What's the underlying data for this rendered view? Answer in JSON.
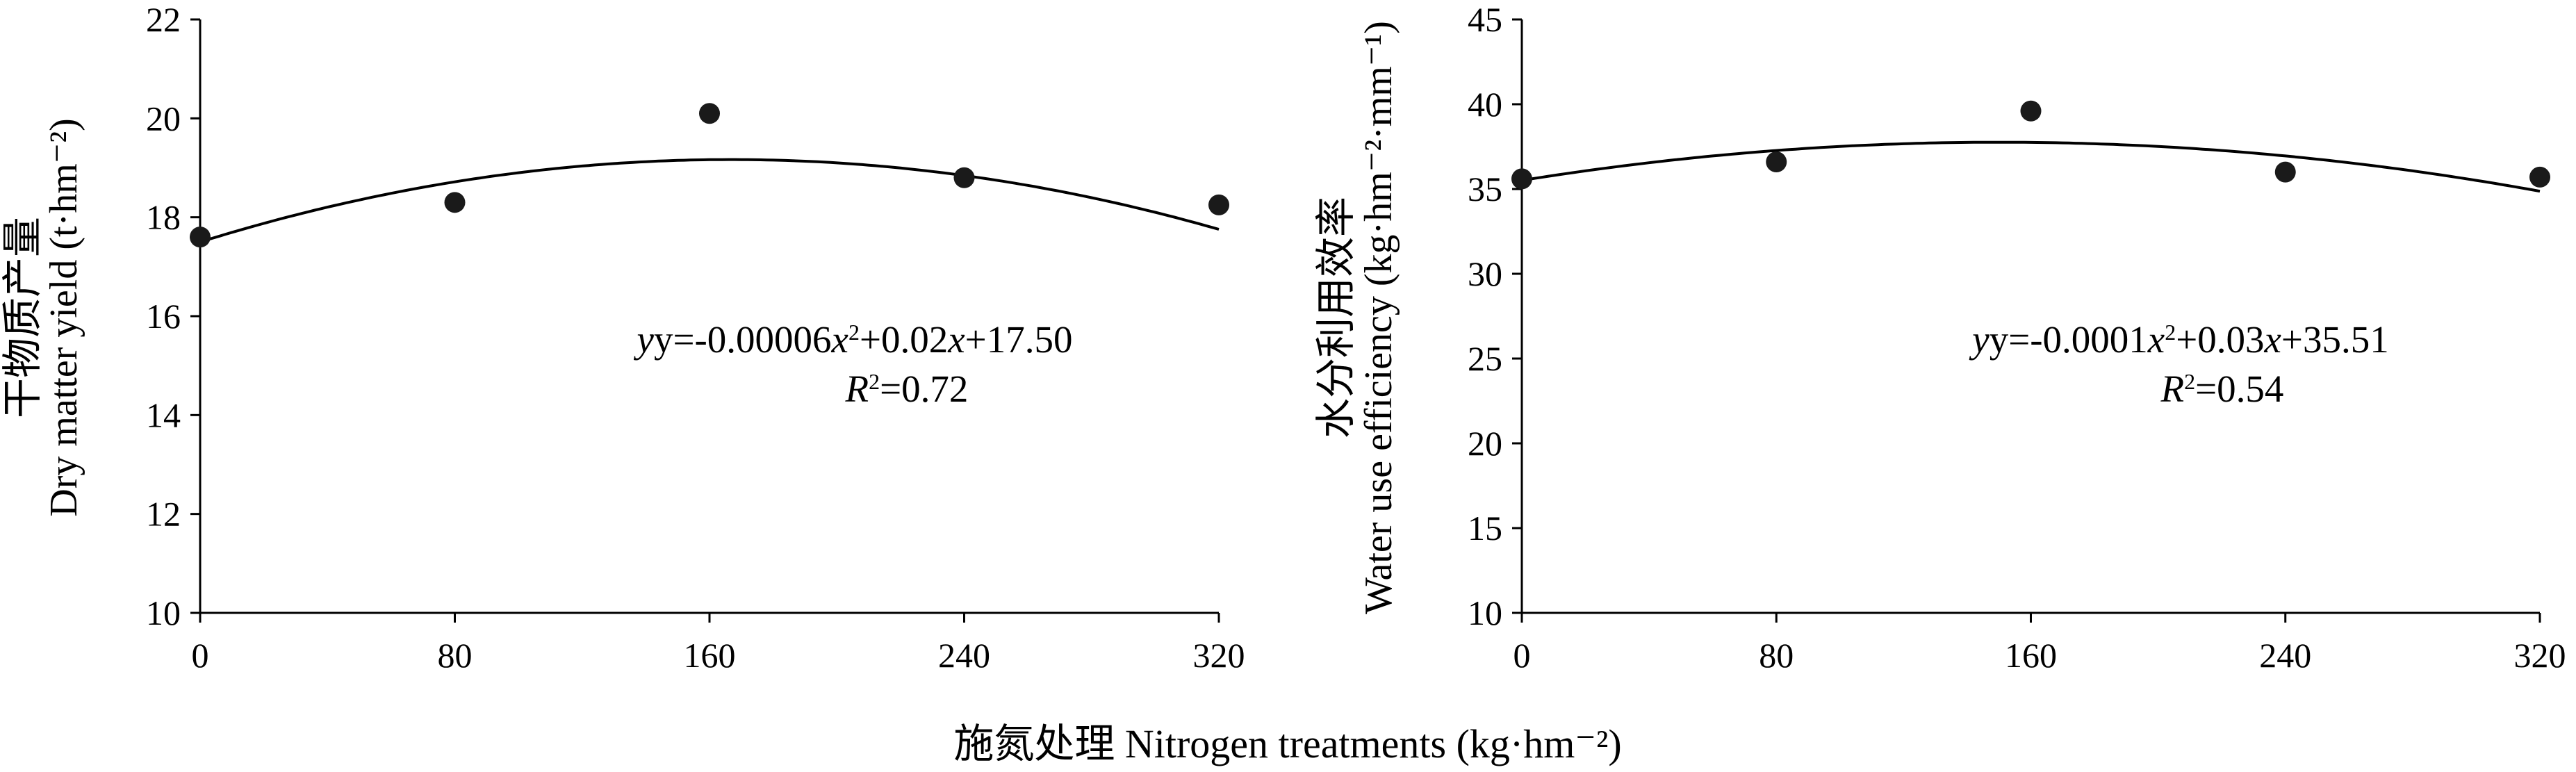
{
  "xlabel": "施氮处理 Nitrogen treatments (kg·hm⁻²)",
  "chart_data": [
    {
      "type": "scatter",
      "ylabel_cn": "干物质产量",
      "ylabel_en": "Dry matter yield (t·hm⁻²)",
      "x": [
        0,
        80,
        160,
        240,
        320
      ],
      "y": [
        17.6,
        18.3,
        20.1,
        18.8,
        18.25
      ],
      "xticks": [
        0,
        80,
        160,
        240,
        320
      ],
      "yticks": [
        10,
        12,
        14,
        16,
        18,
        20,
        22
      ],
      "xlim": [
        0,
        320
      ],
      "ylim": [
        10,
        22
      ],
      "fit": {
        "a": -6e-05,
        "b": 0.02,
        "c": 17.5
      },
      "equation_prefix": "y=-0.00006",
      "equation_mid": "+0.02",
      "equation_suffix": "+17.50",
      "r2_value": "=0.72",
      "marker_color": "#1a1a1a",
      "line_color": "#000000"
    },
    {
      "type": "scatter",
      "ylabel_cn": "水分利用效率",
      "ylabel_en": "Water use efficiency (kg·hm⁻²·mm⁻¹)",
      "x": [
        0,
        80,
        160,
        240,
        320
      ],
      "y": [
        35.6,
        36.6,
        39.6,
        36.0,
        35.7
      ],
      "xticks": [
        0,
        80,
        160,
        240,
        320
      ],
      "yticks": [
        10,
        15,
        20,
        25,
        30,
        35,
        40,
        45
      ],
      "xlim": [
        0,
        320
      ],
      "ylim": [
        10,
        45
      ],
      "fit": {
        "a": -0.0001,
        "b": 0.03,
        "c": 35.51
      },
      "equation_prefix": "y=-0.0001",
      "equation_mid": "+0.03",
      "equation_suffix": "+35.51",
      "r2_value": "=0.54",
      "marker_color": "#1a1a1a",
      "line_color": "#000000"
    }
  ]
}
